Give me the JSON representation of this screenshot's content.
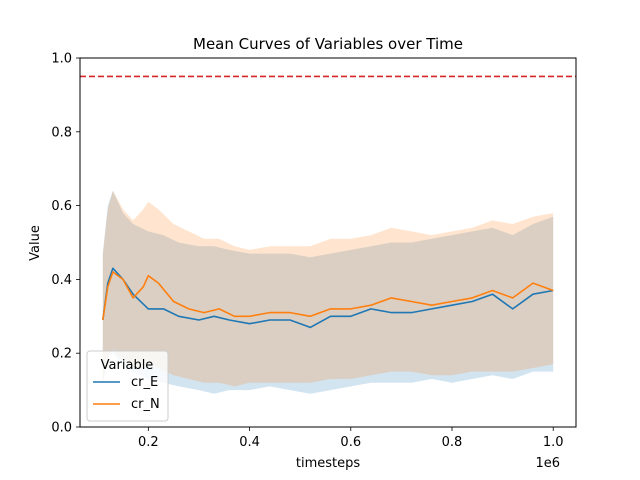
{
  "chart_data": {
    "type": "line",
    "title": "Mean Curves of Variables over Time",
    "xlabel": "timesteps",
    "ylabel": "Value",
    "x_offset_label": "1e6",
    "xlim": [
      0.065,
      1.045
    ],
    "ylim": [
      0.0,
      1.0
    ],
    "x_ticks": [
      0.2,
      0.4,
      0.6,
      0.8,
      1.0
    ],
    "x_tick_labels": [
      "0.2",
      "0.4",
      "0.6",
      "0.8",
      "1.0"
    ],
    "y_ticks": [
      0.0,
      0.2,
      0.4,
      0.6,
      0.8,
      1.0
    ],
    "y_tick_labels": [
      "0.0",
      "0.2",
      "0.4",
      "0.6",
      "0.8",
      "1.0"
    ],
    "reference_line": {
      "y": 0.95,
      "color": "#d62728",
      "style": "dashed"
    },
    "legend": {
      "title": "Variable",
      "position": "lower-left"
    },
    "series": [
      {
        "name": "cr_E",
        "color": "#1f77b4",
        "band_color": "#1f77b4",
        "x": [
          0.11,
          0.12,
          0.13,
          0.15,
          0.17,
          0.2,
          0.23,
          0.26,
          0.3,
          0.33,
          0.36,
          0.4,
          0.44,
          0.48,
          0.52,
          0.56,
          0.6,
          0.64,
          0.68,
          0.72,
          0.76,
          0.8,
          0.84,
          0.88,
          0.92,
          0.96,
          1.0
        ],
        "mean": [
          0.29,
          0.39,
          0.43,
          0.4,
          0.36,
          0.32,
          0.32,
          0.3,
          0.29,
          0.3,
          0.29,
          0.28,
          0.29,
          0.29,
          0.27,
          0.3,
          0.3,
          0.32,
          0.31,
          0.31,
          0.32,
          0.33,
          0.34,
          0.36,
          0.32,
          0.36,
          0.37
        ],
        "lower": [
          0.11,
          0.19,
          0.2,
          0.17,
          0.15,
          0.13,
          0.12,
          0.11,
          0.1,
          0.09,
          0.1,
          0.1,
          0.11,
          0.1,
          0.09,
          0.1,
          0.11,
          0.12,
          0.12,
          0.12,
          0.13,
          0.12,
          0.13,
          0.14,
          0.13,
          0.15,
          0.15
        ],
        "upper": [
          0.47,
          0.6,
          0.64,
          0.58,
          0.55,
          0.53,
          0.52,
          0.5,
          0.49,
          0.49,
          0.48,
          0.47,
          0.47,
          0.47,
          0.46,
          0.47,
          0.48,
          0.49,
          0.5,
          0.5,
          0.51,
          0.52,
          0.53,
          0.54,
          0.52,
          0.55,
          0.57
        ]
      },
      {
        "name": "cr_N",
        "color": "#ff7f0e",
        "band_color": "#ff7f0e",
        "x": [
          0.11,
          0.12,
          0.13,
          0.15,
          0.17,
          0.19,
          0.2,
          0.22,
          0.25,
          0.28,
          0.31,
          0.34,
          0.37,
          0.4,
          0.44,
          0.48,
          0.52,
          0.56,
          0.6,
          0.64,
          0.68,
          0.72,
          0.76,
          0.8,
          0.84,
          0.88,
          0.92,
          0.96,
          1.0
        ],
        "mean": [
          0.29,
          0.38,
          0.42,
          0.4,
          0.35,
          0.38,
          0.41,
          0.39,
          0.34,
          0.32,
          0.31,
          0.32,
          0.3,
          0.3,
          0.31,
          0.31,
          0.3,
          0.32,
          0.32,
          0.33,
          0.35,
          0.34,
          0.33,
          0.34,
          0.35,
          0.37,
          0.35,
          0.39,
          0.37
        ],
        "lower": [
          0.12,
          0.19,
          0.21,
          0.18,
          0.16,
          0.16,
          0.17,
          0.16,
          0.14,
          0.13,
          0.12,
          0.12,
          0.11,
          0.12,
          0.12,
          0.12,
          0.12,
          0.13,
          0.13,
          0.14,
          0.15,
          0.15,
          0.14,
          0.14,
          0.15,
          0.15,
          0.15,
          0.16,
          0.17
        ],
        "upper": [
          0.47,
          0.59,
          0.64,
          0.59,
          0.56,
          0.59,
          0.61,
          0.59,
          0.55,
          0.53,
          0.51,
          0.51,
          0.49,
          0.48,
          0.49,
          0.49,
          0.49,
          0.51,
          0.51,
          0.52,
          0.54,
          0.53,
          0.52,
          0.53,
          0.54,
          0.56,
          0.55,
          0.57,
          0.58
        ]
      }
    ]
  }
}
